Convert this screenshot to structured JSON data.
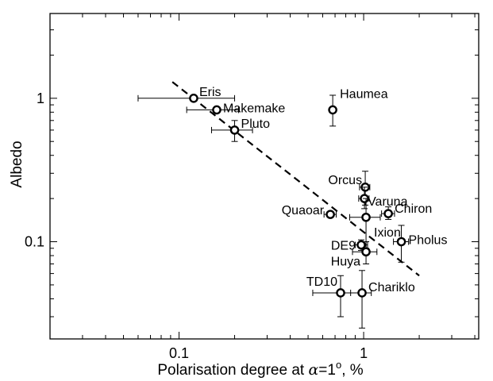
{
  "chart_data": {
    "type": "scatter",
    "title": "",
    "xlabel_parts": [
      "Polarisation degree at ",
      "α",
      "=1",
      "o",
      ", %"
    ],
    "ylabel": "Albedo",
    "x_scale": "log",
    "y_scale": "log",
    "xlim": [
      0.02,
      4.2
    ],
    "ylim": [
      0.021,
      3.9
    ],
    "x_ticks": [
      {
        "value": 0.1,
        "label": "0.1"
      },
      {
        "value": 1,
        "label": "1"
      }
    ],
    "y_ticks": [
      {
        "value": 0.1,
        "label": "0.1"
      },
      {
        "value": 1,
        "label": "1"
      }
    ],
    "grid": false,
    "trend_line": {
      "style": "dashed",
      "x": [
        0.092,
        2.0
      ],
      "y": [
        1.3,
        0.058
      ]
    },
    "points": [
      {
        "name": "Eris",
        "x": 0.12,
        "y": 1.0,
        "x_err": [
          0.06,
          0.2
        ],
        "y_err": null
      },
      {
        "name": "Makemake",
        "x": 0.16,
        "y": 0.83,
        "x_err": [
          0.11,
          0.21
        ],
        "y_err": null
      },
      {
        "name": "Pluto",
        "x": 0.2,
        "y": 0.6,
        "x_err": [
          0.15,
          0.25
        ],
        "y_err": [
          0.5,
          0.7
        ]
      },
      {
        "name": "Haumea",
        "x": 0.68,
        "y": 0.83,
        "x_err": null,
        "y_err": [
          0.64,
          1.05
        ]
      },
      {
        "name": "Orcus",
        "x": 1.02,
        "y": 0.24,
        "x_err": [
          0.95,
          1.08
        ],
        "y_err": [
          0.18,
          0.31
        ]
      },
      {
        "name": "Varuna",
        "x": 1.01,
        "y": 0.2,
        "x_err": [
          0.94,
          1.07
        ],
        "y_err": [
          0.17,
          0.24
        ]
      },
      {
        "name": "Chiron",
        "x": 1.36,
        "y": 0.157,
        "x_err": [
          1.25,
          1.47
        ],
        "y_err": [
          0.143,
          0.175
        ]
      },
      {
        "name": "Quaoar",
        "x": 0.66,
        "y": 0.155,
        "x_err": [
          0.61,
          0.71
        ],
        "y_err": null
      },
      {
        "name": "Ixion",
        "x": 1.03,
        "y": 0.148,
        "x_err": [
          0.84,
          1.23
        ],
        "y_err": [
          0.09,
          0.2
        ]
      },
      {
        "name": "Pholus",
        "x": 1.6,
        "y": 0.1,
        "x_err": [
          1.45,
          1.75
        ],
        "y_err": [
          0.072,
          0.13
        ]
      },
      {
        "name": "DE9",
        "x": 0.97,
        "y": 0.095,
        "x_err": [
          0.9,
          1.05
        ],
        "y_err": [
          0.087,
          0.103
        ]
      },
      {
        "name": "Huya",
        "x": 1.03,
        "y": 0.085,
        "x_err": [
          0.87,
          1.18
        ],
        "y_err": [
          0.07,
          0.1
        ]
      },
      {
        "name": "TD10",
        "x": 0.75,
        "y": 0.044,
        "x_err": [
          0.53,
          0.97
        ],
        "y_err": [
          0.03,
          0.058
        ]
      },
      {
        "name": "Chariklo",
        "x": 0.98,
        "y": 0.044,
        "x_err": [
          0.85,
          1.1
        ],
        "y_err": [
          0.025,
          0.063
        ]
      }
    ]
  }
}
